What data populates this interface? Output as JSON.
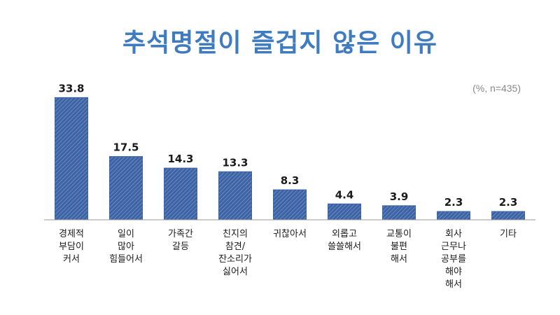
{
  "title": "추석명절이 즐겁지 않은 이유",
  "note": "(%, n=435)",
  "colors": {
    "bar": "#3d63a3",
    "hatch": "#7a9ad0",
    "title": "#3f7bc0",
    "axis": "#999999"
  },
  "chart_data": {
    "type": "bar",
    "title": "추석명절이 즐겁지 않은 이유",
    "xlabel": "",
    "ylabel": "",
    "ylim": [
      0,
      36
    ],
    "grid": false,
    "categories": [
      [
        "경제적",
        "부담이",
        "커서"
      ],
      [
        "일이",
        "많아",
        "힘들어서"
      ],
      [
        "가족간",
        "갈등"
      ],
      [
        "친지의",
        "참견/",
        "잔소리가",
        "싫어서"
      ],
      [
        "귀찮아서"
      ],
      [
        "외롭고",
        "쓸쓸해서"
      ],
      [
        "교통이",
        "불편",
        "해서"
      ],
      [
        "회사",
        "근무나",
        "공부를",
        "해야",
        "해서"
      ],
      [
        "기타"
      ]
    ],
    "values": [
      33.8,
      17.5,
      14.3,
      13.3,
      8.3,
      4.4,
      3.9,
      2.3,
      2.3
    ],
    "value_labels": [
      "33.8",
      "17.5",
      "14.3",
      "13.3",
      "8.3",
      "4.4",
      "3.9",
      "2.3",
      "2.3"
    ]
  }
}
